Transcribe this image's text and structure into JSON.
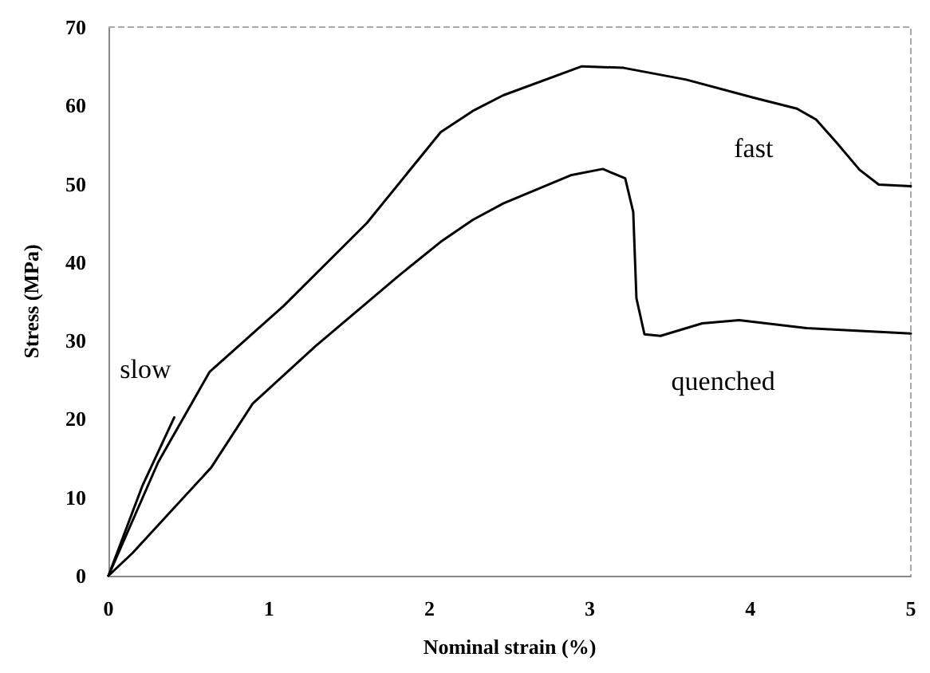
{
  "chart_data": {
    "type": "line",
    "xlabel": "Nominal strain (%)",
    "ylabel": "Stress (MPa)",
    "xlim": [
      0,
      5
    ],
    "xticks": [
      0,
      1,
      2,
      3,
      4,
      5
    ],
    "ylim": [
      0,
      70
    ],
    "yticks": [
      0,
      10,
      20,
      30,
      40,
      50,
      60,
      70
    ],
    "grid": false,
    "marker": "none",
    "line_style": "solid",
    "series": [
      {
        "name": "slow",
        "color": "#000000",
        "x": [
          0,
          0.21,
          0.41
        ],
        "values": [
          0,
          11.4,
          20.2
        ]
      },
      {
        "name": "fast",
        "color": "#000000",
        "x": [
          0,
          0.31,
          0.63,
          1.09,
          1.61,
          2.07,
          2.27,
          2.46,
          2.95,
          3.21,
          3.6,
          4.02,
          4.29,
          4.41,
          4.54,
          4.68,
          4.8,
          5.0
        ],
        "values": [
          0,
          14.5,
          26,
          34.4,
          45,
          56.6,
          59.3,
          61.3,
          65,
          64.8,
          63.3,
          61,
          59.6,
          58.2,
          55.2,
          51.8,
          49.9,
          49.7
        ]
      },
      {
        "name": "quenched",
        "color": "#000000",
        "x": [
          0,
          0.15,
          0.64,
          0.9,
          1.29,
          1.81,
          2.07,
          2.27,
          2.46,
          2.88,
          3.08,
          3.22,
          3.27,
          3.29,
          3.34,
          3.44,
          3.7,
          3.93,
          4.35,
          5.0
        ],
        "values": [
          0,
          2.9,
          13.8,
          22,
          29.3,
          38.3,
          42.6,
          45.4,
          47.5,
          51.1,
          51.9,
          50.7,
          46.4,
          35.4,
          30.8,
          30.6,
          32.2,
          32.6,
          31.6,
          30.9
        ]
      }
    ]
  }
}
